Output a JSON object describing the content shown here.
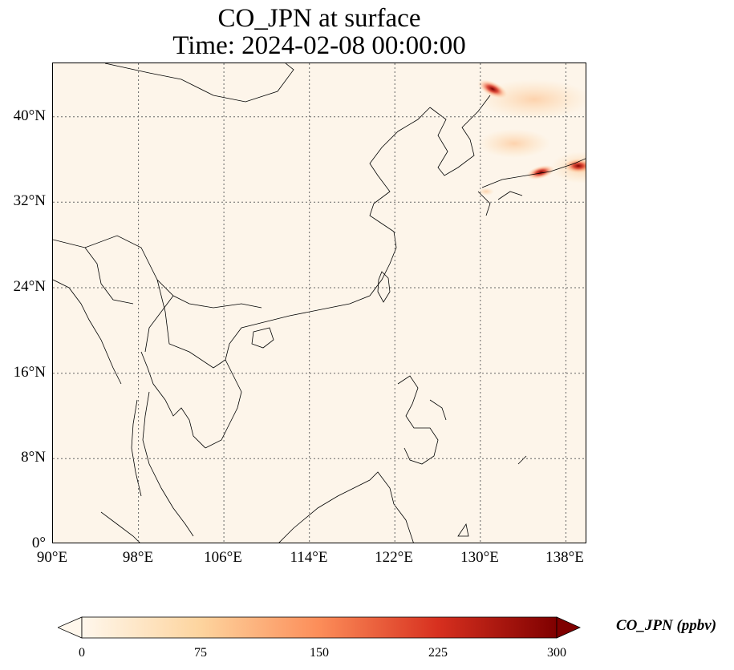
{
  "map": {
    "title_line1": "CO_JPN at surface",
    "title_line2": "Time: 2024-02-08 00:00:00",
    "lon_range": [
      90,
      140
    ],
    "lat_range": [
      0,
      45
    ],
    "lat_ticks": [
      "0°",
      "8°N",
      "16°N",
      "24°N",
      "32°N",
      "40°N"
    ],
    "lon_ticks": [
      "90°E",
      "98°E",
      "106°E",
      "114°E",
      "122°E",
      "130°E",
      "138°E"
    ],
    "gridlines": true,
    "background_color": "#fdf5ea"
  },
  "colorbar": {
    "title": "CO_JPN (ppbv)",
    "tick_labels": [
      "0",
      "75",
      "150",
      "225",
      "300"
    ],
    "colormap": "OrRd",
    "color_stops": [
      "#fff7ec",
      "#fdd49e",
      "#fc8d59",
      "#d7301f",
      "#7f0000"
    ],
    "extend": "both"
  }
}
